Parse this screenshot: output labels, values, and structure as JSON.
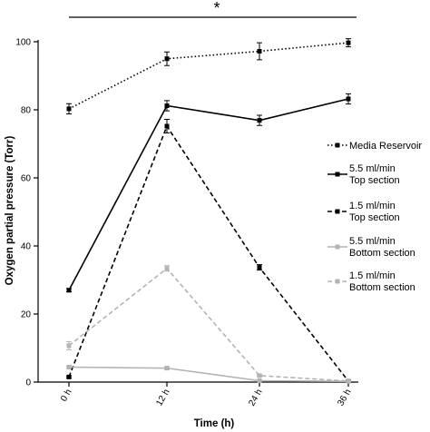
{
  "chart_data": {
    "type": "line",
    "title": "",
    "xlabel": "Time (h)",
    "ylabel": "Oxygen partial pressure (Torr)",
    "categories": [
      "0 h",
      "12 h",
      "24 h",
      "36 h"
    ],
    "ylim": [
      0,
      100
    ],
    "yticks": [
      0,
      20,
      40,
      60,
      80,
      100
    ],
    "grid": false,
    "legend_position": "right",
    "significance_label": "*",
    "series": [
      {
        "name": "Media Reservoir",
        "values": [
          80.3,
          95.0,
          97.2,
          99.7
        ],
        "errors": [
          1.5,
          2.0,
          2.5,
          1.2
        ],
        "color": "#000000",
        "dash": "dotted",
        "marker": "square"
      },
      {
        "name": "5.5 ml/min\nTop section",
        "values": [
          27.0,
          81.2,
          76.9,
          83.2
        ],
        "errors": [
          0.5,
          1.5,
          1.5,
          1.5
        ],
        "color": "#000000",
        "dash": "solid",
        "marker": "square"
      },
      {
        "name": "1.5 ml/min\nTop section",
        "values": [
          1.5,
          75.2,
          33.7,
          0.3
        ],
        "errors": [
          0.3,
          2.0,
          0.8,
          0.3
        ],
        "color": "#000000",
        "dash": "dashed",
        "marker": "square"
      },
      {
        "name": "5.5 ml/min\nBottom section",
        "values": [
          4.4,
          4.1,
          0.4,
          0.2
        ],
        "errors": [
          0.4,
          0.4,
          0.2,
          0.1
        ],
        "color": "#b3b3b3",
        "dash": "solid",
        "marker": "square"
      },
      {
        "name": "1.5 ml/min\nBottom section",
        "values": [
          10.7,
          33.4,
          1.9,
          0.3
        ],
        "errors": [
          1.2,
          0.8,
          0.3,
          0.2
        ],
        "color": "#b3b3b3",
        "dash": "dashed",
        "marker": "square"
      }
    ]
  }
}
